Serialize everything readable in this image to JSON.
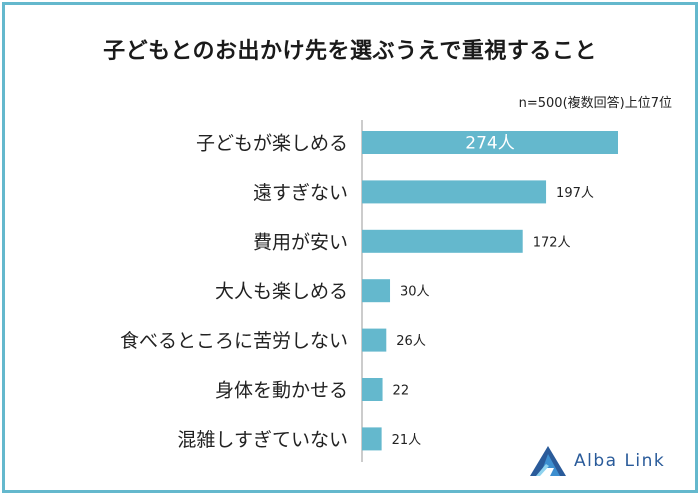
{
  "title": "子どもとのお出かけ先を選ぶうえで重視すること",
  "note": "n=500(複数回答)上位7位",
  "logo_text": "Alba Link",
  "colors": {
    "bar": "#64b8cd",
    "border": "#64b8cd",
    "logo": "#2a5b9a"
  },
  "chart_data": {
    "type": "bar",
    "orientation": "horizontal",
    "title": "子どもとのお出かけ先を選ぶうえで重視すること",
    "categories": [
      "子どもが楽しめる",
      "遠すぎない",
      "費用が安い",
      "大人も楽しめる",
      "食べるところに苦労しない",
      "身体を動かせる",
      "混雑しすぎていない"
    ],
    "values": [
      274,
      197,
      172,
      30,
      26,
      22,
      21
    ],
    "value_labels": [
      "274人",
      "197人",
      "172人",
      "30人",
      "26人",
      "22",
      "21人"
    ],
    "xlim": [
      0,
      274
    ],
    "grid": false
  }
}
